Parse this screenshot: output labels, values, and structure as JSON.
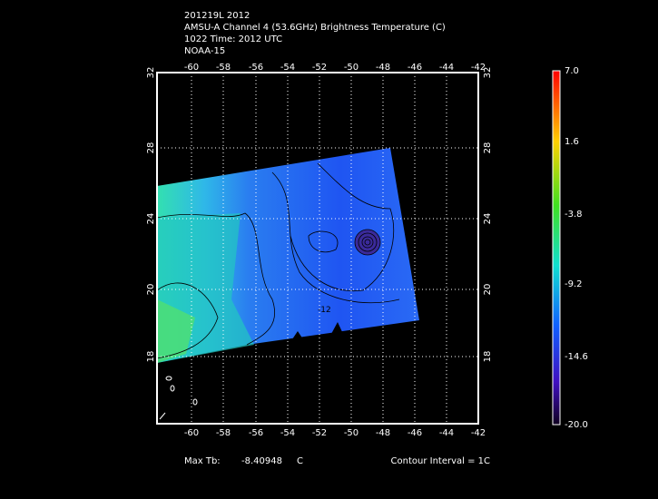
{
  "header": {
    "lines": [
      "201219L 2012",
      "AMSU-A Channel 4 (53.6GHz) Brightness Temperature (C)",
      "1022 Time: 2012 UTC",
      "NOAA-15"
    ]
  },
  "map": {
    "lon_ticks": [
      "-60",
      "-58",
      "-56",
      "-54",
      "-52",
      "-50",
      "-48",
      "-46",
      "-44",
      "-42"
    ],
    "lat_ticks": [
      "32",
      "28",
      "24",
      "20",
      "18"
    ],
    "contour_label": "-12"
  },
  "colorbar": {
    "labels": [
      "7.0",
      "1.6",
      "-3.8",
      "-9.2",
      "-14.6",
      "-20.0"
    ]
  },
  "footer": {
    "max_tb_label": "Max Tb:",
    "max_tb_value": "-8.40948",
    "max_tb_unit": "C",
    "contour_interval": "Contour Interval = 1C"
  }
}
